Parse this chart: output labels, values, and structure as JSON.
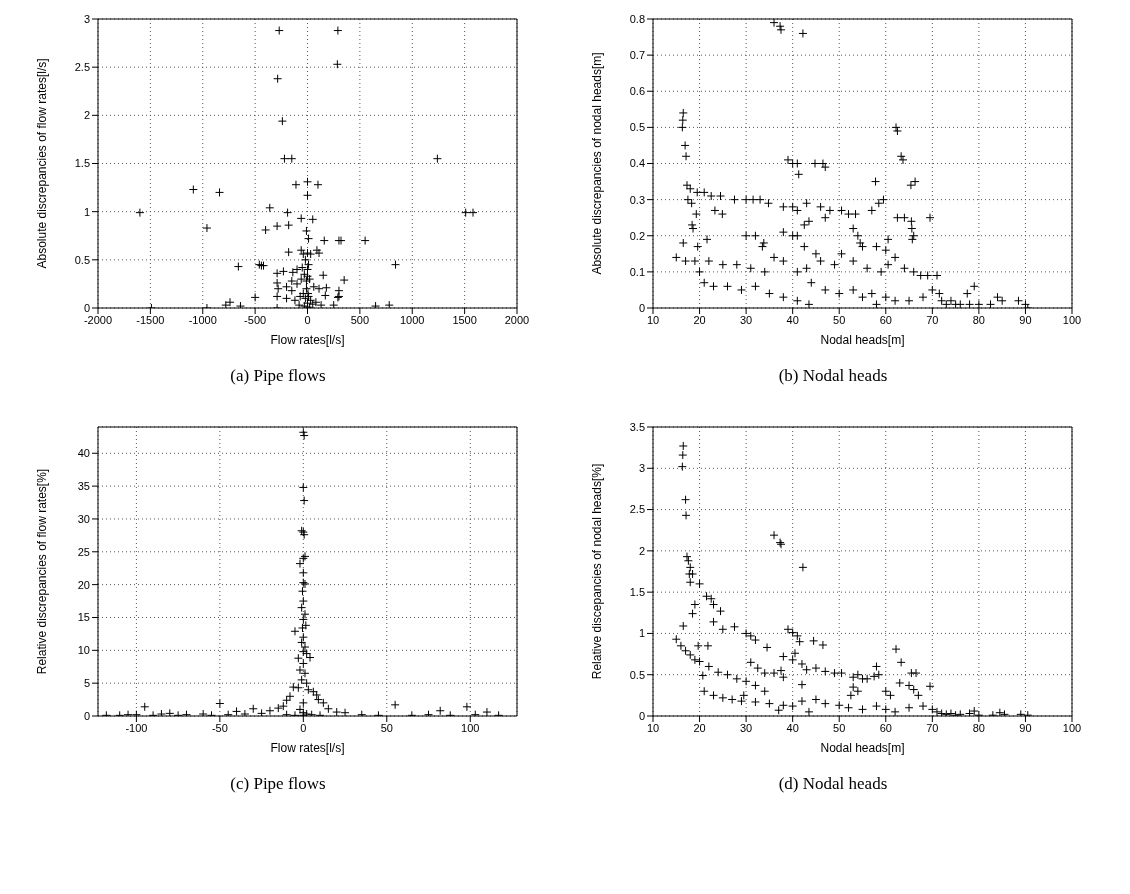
{
  "chart_data": [
    {
      "type": "scatter",
      "xlabel": "Flow rates[l/s]",
      "ylabel": "Absolute discrepancies of flow rates[l/s]",
      "annotations": [
        "(a) Pipe flows"
      ],
      "color": "#000000",
      "marker": "cross",
      "grid": true,
      "xlim": [
        -2000,
        2000
      ],
      "xticks": [
        -2000,
        -1500,
        -1000,
        -500,
        0,
        500,
        1000,
        1500,
        2000
      ],
      "ylim": [
        0,
        3
      ],
      "yticks": [
        0,
        0.5,
        1,
        1.5,
        2,
        2.5,
        3
      ],
      "x": [
        -270,
        290,
        285,
        -285,
        -240,
        -220,
        -150,
        1240,
        -1090,
        -840,
        -110,
        0,
        100,
        0,
        -360,
        -1600,
        -190,
        1510,
        1580,
        -960,
        -400,
        -290,
        -180,
        -60,
        50,
        -10,
        10,
        160,
        300,
        320,
        550,
        -660,
        -460,
        -440,
        -420,
        840,
        -180,
        -60,
        -40,
        0,
        30,
        90,
        110,
        -290,
        -230,
        -140,
        -100,
        -50,
        10,
        150,
        350,
        -290,
        -280,
        -200,
        -150,
        -100,
        -60,
        -30,
        -10,
        20,
        60,
        110,
        180,
        300,
        300,
        290,
        170,
        -290,
        -200,
        -120,
        -70,
        -40,
        -20,
        0,
        10,
        30,
        50,
        80,
        130,
        250,
        -500,
        -740,
        -780,
        -640,
        -290,
        -1490,
        -960,
        650,
        780,
        -30,
        0,
        20,
        -80,
        -10,
        0,
        5,
        -20,
        0,
        -150
      ],
      "values": [
        2.88,
        2.88,
        2.53,
        2.38,
        1.94,
        1.55,
        1.55,
        1.55,
        1.23,
        1.2,
        1.28,
        1.31,
        1.28,
        1.17,
        1.04,
        0.99,
        0.99,
        0.99,
        0.99,
        0.83,
        0.81,
        0.85,
        0.86,
        0.93,
        0.92,
        0.8,
        0.72,
        0.7,
        0.7,
        0.7,
        0.7,
        0.43,
        0.45,
        0.44,
        0.44,
        0.45,
        0.58,
        0.6,
        0.56,
        0.57,
        0.56,
        0.6,
        0.57,
        0.36,
        0.38,
        0.37,
        0.4,
        0.42,
        0.45,
        0.34,
        0.29,
        0.26,
        0.2,
        0.22,
        0.18,
        0.25,
        0.3,
        0.35,
        0.28,
        0.3,
        0.22,
        0.2,
        0.21,
        0.18,
        0.12,
        0.11,
        0.13,
        0.12,
        0.1,
        0.08,
        0.12,
        0.15,
        0.1,
        0.05,
        0.12,
        0.08,
        0.04,
        0.06,
        0.03,
        0.03,
        0.11,
        0.06,
        0.03,
        0.02,
        0,
        0,
        0,
        0.02,
        0.03,
        0.02,
        0.01,
        0,
        0.03,
        0.2,
        0.33,
        0.15,
        0.5,
        0.4,
        0.28
      ]
    },
    {
      "type": "scatter",
      "xlabel": "Nodal heads[m]",
      "ylabel": "Absolute discrepancies of nodal heads[m]",
      "annotations": [
        "(b) Nodal heads"
      ],
      "color": "#000000",
      "marker": "cross",
      "grid": true,
      "xlim": [
        10,
        100
      ],
      "xticks": [
        10,
        20,
        30,
        40,
        50,
        60,
        70,
        80,
        90,
        100
      ],
      "ylim": [
        0,
        0.8
      ],
      "yticks": [
        0,
        0.1,
        0.2,
        0.3,
        0.4,
        0.5,
        0.6,
        0.7,
        0.8
      ],
      "x": [
        36,
        37.3,
        37.5,
        42.2,
        16.5,
        16.4,
        16.3,
        16.9,
        17.1,
        39,
        40,
        41,
        44.8,
        46.5,
        47,
        41.3,
        62.2,
        62.5,
        63.3,
        63.7,
        57.8,
        65.4,
        66.3,
        17.3,
        18,
        19.5,
        21,
        22.5,
        24.5,
        27.5,
        30,
        31.5,
        33,
        34.8,
        38,
        40,
        41,
        43,
        46,
        48,
        50.5,
        52,
        53.5,
        57,
        58.5,
        59.5,
        17.5,
        18.3,
        19.3,
        18.4,
        18.6,
        23.3,
        24.9,
        62.5,
        64,
        65.5,
        65.6,
        66,
        65.7,
        69.5,
        42.5,
        43.5,
        47,
        53,
        54,
        54.5,
        16.5,
        21.6,
        19.6,
        38,
        40,
        41,
        30,
        32,
        33.8,
        33.5,
        42.5,
        45,
        55,
        58,
        60,
        60.5,
        15,
        17,
        19,
        22,
        25,
        28,
        31,
        34,
        36,
        38,
        41,
        43,
        46,
        49,
        50.5,
        53,
        56,
        59,
        60.5,
        62,
        64,
        66,
        67.5,
        69,
        21,
        23,
        26,
        29,
        32,
        35,
        38,
        41,
        43.5,
        44,
        47,
        50,
        53,
        55,
        57,
        58,
        60,
        62,
        65,
        68,
        70,
        71.5,
        72,
        73,
        74,
        75,
        76,
        77.5,
        78,
        79,
        80,
        82.5,
        84,
        85,
        88.5,
        90,
        90.5,
        71,
        20
      ],
      "values": [
        0.79,
        0.78,
        0.77,
        0.76,
        0.54,
        0.52,
        0.5,
        0.45,
        0.42,
        0.41,
        0.4,
        0.4,
        0.4,
        0.4,
        0.39,
        0.37,
        0.5,
        0.49,
        0.42,
        0.41,
        0.35,
        0.34,
        0.35,
        0.34,
        0.33,
        0.32,
        0.32,
        0.31,
        0.31,
        0.3,
        0.3,
        0.3,
        0.3,
        0.29,
        0.28,
        0.28,
        0.27,
        0.29,
        0.28,
        0.27,
        0.27,
        0.26,
        0.26,
        0.27,
        0.29,
        0.3,
        0.3,
        0.29,
        0.26,
        0.23,
        0.22,
        0.27,
        0.26,
        0.25,
        0.25,
        0.24,
        0.22,
        0.2,
        0.19,
        0.25,
        0.23,
        0.24,
        0.25,
        0.22,
        0.2,
        0.18,
        0.18,
        0.19,
        0.17,
        0.21,
        0.2,
        0.2,
        0.2,
        0.2,
        0.18,
        0.17,
        0.17,
        0.15,
        0.17,
        0.17,
        0.16,
        0.19,
        0.14,
        0.13,
        0.13,
        0.13,
        0.12,
        0.12,
        0.11,
        0.1,
        0.14,
        0.13,
        0.1,
        0.11,
        0.13,
        0.12,
        0.15,
        0.13,
        0.11,
        0.1,
        0.12,
        0.14,
        0.11,
        0.1,
        0.09,
        0.09,
        0.07,
        0.06,
        0.06,
        0.05,
        0.06,
        0.04,
        0.03,
        0.02,
        0.01,
        0.07,
        0.05,
        0.04,
        0.05,
        0.03,
        0.04,
        0.01,
        0.03,
        0.02,
        0.02,
        0.03,
        0.05,
        0.04,
        0.02,
        0.01,
        0.02,
        0.01,
        0.01,
        0.04,
        0.01,
        0.06,
        0.01,
        0.01,
        0.03,
        0.02,
        0.02,
        0.01,
        0,
        0.09,
        0.1
      ]
    },
    {
      "type": "scatter",
      "xlabel": "Flow rates[l/s]",
      "ylabel": "Relative discrepancies of flow rates[%]",
      "annotations": [
        "(c) Pipe flows"
      ],
      "color": "#000000",
      "marker": "cross",
      "grid": true,
      "xlim": [
        -123,
        128
      ],
      "xticks": [
        -100,
        -50,
        0,
        50,
        100
      ],
      "ylim": [
        0,
        44
      ],
      "yticks": [
        0,
        5,
        10,
        15,
        20,
        25,
        30,
        35,
        40
      ],
      "x": [
        0,
        0.5,
        0,
        0.5,
        -1,
        0,
        0.5,
        1,
        0,
        -2,
        0,
        0,
        1,
        -0.5,
        0,
        -1,
        1,
        0,
        -0.5,
        1.5,
        -5,
        0,
        -1,
        1,
        0,
        2,
        -3,
        4,
        0,
        -2,
        1,
        -1,
        2,
        -3,
        3,
        -6,
        6,
        -8,
        8,
        9,
        -10,
        12,
        -12,
        15,
        -15,
        -20,
        20,
        -25,
        25,
        -30,
        -40,
        -50,
        -60,
        -70,
        -80,
        -95,
        -100,
        -110,
        -118,
        -105,
        -90,
        -85,
        -75,
        -55,
        -45,
        -35,
        35,
        45,
        55,
        65,
        75,
        82,
        88,
        98,
        103,
        110,
        117,
        0,
        0,
        2,
        -2,
        5,
        -5,
        0,
        10,
        -10
      ],
      "values": [
        43.2,
        42.7,
        34.8,
        32.8,
        28.2,
        28,
        27.6,
        24.3,
        24,
        23.2,
        21.8,
        20.3,
        20.1,
        19,
        17.5,
        16.5,
        15.5,
        14.7,
        13.4,
        13.8,
        12.9,
        12,
        11.2,
        10.5,
        9.8,
        9.5,
        8.8,
        8.9,
        8,
        7,
        6.5,
        5.5,
        5,
        4.3,
        4,
        4.4,
        3.7,
        3,
        3.2,
        2.5,
        2.4,
        2,
        1.5,
        1.1,
        1.2,
        0.8,
        0.6,
        0.4,
        0.5,
        1.1,
        0.7,
        1.9,
        0.3,
        0.2,
        0.4,
        1.4,
        0.2,
        0.1,
        0.1,
        0.2,
        0.1,
        0.3,
        0.1,
        0.1,
        0.2,
        0.3,
        0.2,
        0.1,
        1.7,
        0.1,
        0.2,
        0.8,
        0.1,
        1.4,
        0.2,
        0.6,
        0.1,
        2,
        0.5,
        0.3,
        1,
        0.2,
        0.1,
        0.1,
        0.1,
        0.2
      ]
    },
    {
      "type": "scatter",
      "xlabel": "Nodal heads[m]",
      "ylabel": "Relative discepancies of nodal heads[%]",
      "annotations": [
        "(d) Nodal heads"
      ],
      "color": "#000000",
      "marker": "cross",
      "grid": true,
      "xlim": [
        10,
        100
      ],
      "xticks": [
        10,
        20,
        30,
        40,
        50,
        60,
        70,
        80,
        90,
        100
      ],
      "ylim": [
        0,
        3.5
      ],
      "yticks": [
        0,
        0.5,
        1,
        1.5,
        2,
        2.5,
        3,
        3.5
      ],
      "x": [
        16.5,
        16.4,
        16.3,
        17,
        17.1,
        36,
        37.3,
        37.5,
        42.2,
        17.3,
        17.6,
        18,
        18.5,
        17.8,
        18,
        20,
        21.5,
        22.5,
        23,
        24.5,
        19,
        18.5,
        16.5,
        23,
        25,
        27.5,
        30,
        31,
        32,
        34.5,
        39,
        40,
        41,
        41.5,
        44.5,
        46.5,
        62.2,
        63.3,
        58,
        65.5,
        66.5,
        69.5,
        15,
        16,
        17,
        18,
        19,
        20,
        19.7,
        21.8,
        20.7,
        22,
        24,
        26,
        28,
        30,
        32,
        34,
        29.5,
        31,
        32.5,
        34,
        36,
        37.5,
        38,
        38,
        40,
        40.5,
        42,
        43,
        45,
        47,
        49,
        50.5,
        53,
        54,
        55,
        56,
        57.5,
        58.5,
        53,
        52.5,
        54,
        60,
        61,
        63,
        65,
        66,
        67,
        21,
        23,
        25,
        27,
        29,
        32,
        35,
        38,
        40,
        42,
        43.5,
        45,
        47,
        50,
        52,
        55,
        58,
        60,
        62,
        65,
        68,
        70,
        71,
        72,
        73,
        74,
        75,
        76,
        78,
        79,
        80,
        83,
        84.5,
        85.5,
        89,
        90.5,
        42,
        37
      ],
      "values": [
        3.27,
        3.16,
        3.02,
        2.62,
        2.43,
        2.19,
        2.1,
        2.08,
        1.8,
        1.93,
        1.88,
        1.8,
        1.72,
        1.72,
        1.62,
        1.6,
        1.45,
        1.42,
        1.35,
        1.27,
        1.35,
        1.24,
        1.09,
        1.14,
        1.05,
        1.08,
        1,
        0.97,
        0.92,
        0.83,
        1.05,
        1.01,
        0.97,
        0.9,
        0.91,
        0.86,
        0.81,
        0.65,
        0.6,
        0.52,
        0.52,
        0.36,
        0.93,
        0.85,
        0.79,
        0.74,
        0.68,
        0.66,
        0.85,
        0.85,
        0.49,
        0.6,
        0.53,
        0.5,
        0.45,
        0.42,
        0.37,
        0.3,
        0.25,
        0.65,
        0.58,
        0.52,
        0.52,
        0.55,
        0.47,
        0.72,
        0.68,
        0.76,
        0.63,
        0.56,
        0.58,
        0.54,
        0.52,
        0.52,
        0.47,
        0.5,
        0.45,
        0.45,
        0.48,
        0.5,
        0.35,
        0.25,
        0.3,
        0.3,
        0.25,
        0.4,
        0.37,
        0.32,
        0.25,
        0.3,
        0.25,
        0.22,
        0.2,
        0.18,
        0.17,
        0.15,
        0.13,
        0.12,
        0.18,
        0.05,
        0.2,
        0.15,
        0.13,
        0.1,
        0.08,
        0.12,
        0.08,
        0.05,
        0.1,
        0.12,
        0.08,
        0.05,
        0.03,
        0.02,
        0.03,
        0.01,
        0.02,
        0.03,
        0.06,
        0.01,
        0.01,
        0.04,
        0.02,
        0.02,
        0.01,
        0.38,
        0.07
      ]
    }
  ]
}
